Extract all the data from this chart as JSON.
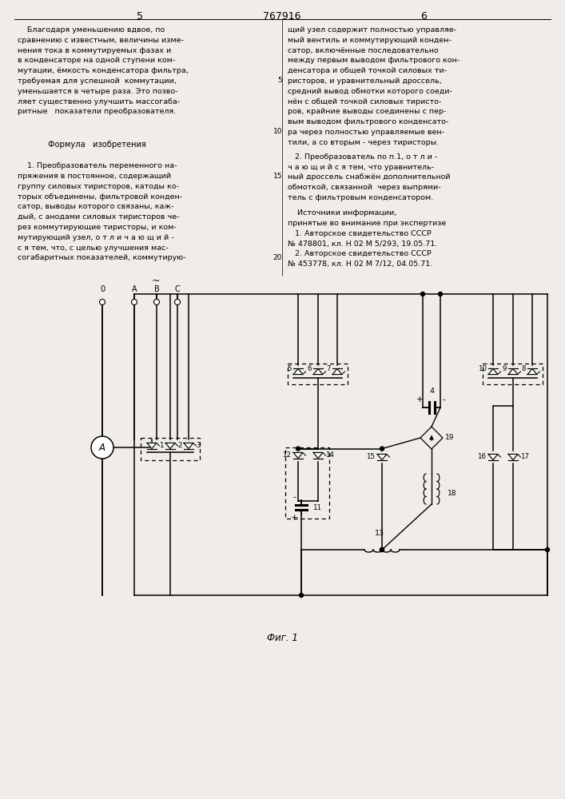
{
  "page_number_left": "5",
  "page_number_center": "767916",
  "page_number_right": "6",
  "background_color": "#f0ede8",
  "fig_caption": "Фиг. 1"
}
